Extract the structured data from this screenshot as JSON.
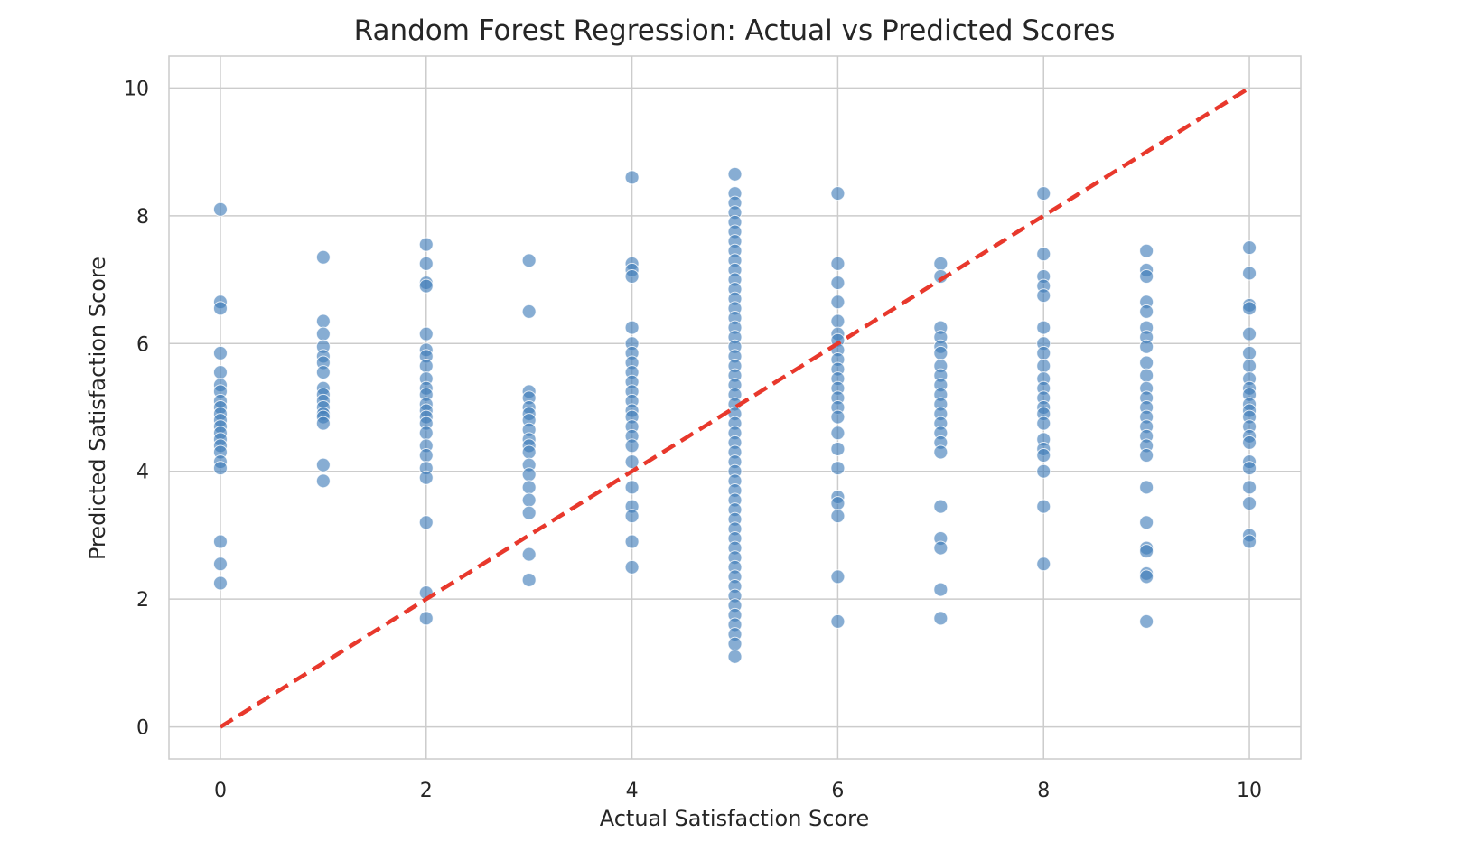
{
  "chart_data": {
    "type": "scatter",
    "title": "Random Forest Regression: Actual vs Predicted Scores",
    "xlabel": "Actual Satisfaction Score",
    "ylabel": "Predicted Satisfaction Score",
    "xlim": [
      -0.5,
      10.5
    ],
    "ylim": [
      -0.5,
      10.5
    ],
    "xticks": [
      0,
      2,
      4,
      6,
      8,
      10
    ],
    "yticks": [
      0,
      2,
      4,
      6,
      8,
      10
    ],
    "grid": true,
    "colors": {
      "points": "#3d7ab8",
      "reference_line": "#e8382c",
      "grid": "#cccccc",
      "frame": "#cccccc",
      "text": "#262626"
    },
    "reference_line": {
      "style": "dashed",
      "x": [
        0,
        10
      ],
      "y": [
        0,
        10
      ]
    },
    "series": [
      {
        "points": [
          [
            0,
            8.1
          ],
          [
            0,
            6.65
          ],
          [
            0,
            6.55
          ],
          [
            0,
            5.85
          ],
          [
            0,
            5.55
          ],
          [
            0,
            5.35
          ],
          [
            0,
            5.25
          ],
          [
            0,
            5.1
          ],
          [
            0,
            5.0
          ],
          [
            0,
            4.9
          ],
          [
            0,
            4.8
          ],
          [
            0,
            4.7
          ],
          [
            0,
            4.6
          ],
          [
            0,
            4.5
          ],
          [
            0,
            4.4
          ],
          [
            0,
            4.3
          ],
          [
            0,
            4.15
          ],
          [
            0,
            4.05
          ],
          [
            0,
            2.9
          ],
          [
            0,
            2.55
          ],
          [
            0,
            2.25
          ],
          [
            1,
            7.35
          ],
          [
            1,
            6.35
          ],
          [
            1,
            6.15
          ],
          [
            1,
            5.95
          ],
          [
            1,
            5.8
          ],
          [
            1,
            5.7
          ],
          [
            1,
            5.55
          ],
          [
            1,
            5.3
          ],
          [
            1,
            5.2
          ],
          [
            1,
            5.1
          ],
          [
            1,
            5.0
          ],
          [
            1,
            4.9
          ],
          [
            1,
            4.85
          ],
          [
            1,
            4.75
          ],
          [
            1,
            4.1
          ],
          [
            1,
            3.85
          ],
          [
            2,
            7.55
          ],
          [
            2,
            7.25
          ],
          [
            2,
            6.95
          ],
          [
            2,
            6.9
          ],
          [
            2,
            6.15
          ],
          [
            2,
            5.9
          ],
          [
            2,
            5.8
          ],
          [
            2,
            5.65
          ],
          [
            2,
            5.45
          ],
          [
            2,
            5.3
          ],
          [
            2,
            5.2
          ],
          [
            2,
            5.05
          ],
          [
            2,
            4.95
          ],
          [
            2,
            4.85
          ],
          [
            2,
            4.75
          ],
          [
            2,
            4.6
          ],
          [
            2,
            4.4
          ],
          [
            2,
            4.25
          ],
          [
            2,
            4.05
          ],
          [
            2,
            3.9
          ],
          [
            2,
            3.2
          ],
          [
            2,
            2.1
          ],
          [
            2,
            1.7
          ],
          [
            3,
            7.3
          ],
          [
            3,
            6.5
          ],
          [
            3,
            5.25
          ],
          [
            3,
            5.15
          ],
          [
            3,
            5.0
          ],
          [
            3,
            4.9
          ],
          [
            3,
            4.8
          ],
          [
            3,
            4.65
          ],
          [
            3,
            4.5
          ],
          [
            3,
            4.4
          ],
          [
            3,
            4.3
          ],
          [
            3,
            4.1
          ],
          [
            3,
            3.95
          ],
          [
            3,
            3.75
          ],
          [
            3,
            3.55
          ],
          [
            3,
            3.35
          ],
          [
            3,
            2.7
          ],
          [
            3,
            2.3
          ],
          [
            4,
            8.6
          ],
          [
            4,
            7.25
          ],
          [
            4,
            7.15
          ],
          [
            4,
            7.05
          ],
          [
            4,
            6.25
          ],
          [
            4,
            6.0
          ],
          [
            4,
            5.85
          ],
          [
            4,
            5.7
          ],
          [
            4,
            5.55
          ],
          [
            4,
            5.4
          ],
          [
            4,
            5.25
          ],
          [
            4,
            5.1
          ],
          [
            4,
            4.95
          ],
          [
            4,
            4.85
          ],
          [
            4,
            4.7
          ],
          [
            4,
            4.55
          ],
          [
            4,
            4.4
          ],
          [
            4,
            4.15
          ],
          [
            4,
            3.75
          ],
          [
            4,
            3.45
          ],
          [
            4,
            3.3
          ],
          [
            4,
            2.9
          ],
          [
            4,
            2.5
          ],
          [
            5,
            8.65
          ],
          [
            5,
            8.35
          ],
          [
            5,
            8.2
          ],
          [
            5,
            8.05
          ],
          [
            5,
            7.9
          ],
          [
            5,
            7.75
          ],
          [
            5,
            7.6
          ],
          [
            5,
            7.45
          ],
          [
            5,
            7.3
          ],
          [
            5,
            7.15
          ],
          [
            5,
            7.0
          ],
          [
            5,
            6.85
          ],
          [
            5,
            6.7
          ],
          [
            5,
            6.55
          ],
          [
            5,
            6.4
          ],
          [
            5,
            6.25
          ],
          [
            5,
            6.1
          ],
          [
            5,
            5.95
          ],
          [
            5,
            5.8
          ],
          [
            5,
            5.65
          ],
          [
            5,
            5.5
          ],
          [
            5,
            5.35
          ],
          [
            5,
            5.2
          ],
          [
            5,
            5.05
          ],
          [
            5,
            4.9
          ],
          [
            5,
            4.75
          ],
          [
            5,
            4.6
          ],
          [
            5,
            4.45
          ],
          [
            5,
            4.3
          ],
          [
            5,
            4.15
          ],
          [
            5,
            4.0
          ],
          [
            5,
            3.85
          ],
          [
            5,
            3.7
          ],
          [
            5,
            3.55
          ],
          [
            5,
            3.4
          ],
          [
            5,
            3.25
          ],
          [
            5,
            3.1
          ],
          [
            5,
            2.95
          ],
          [
            5,
            2.8
          ],
          [
            5,
            2.65
          ],
          [
            5,
            2.5
          ],
          [
            5,
            2.35
          ],
          [
            5,
            2.2
          ],
          [
            5,
            2.05
          ],
          [
            5,
            1.9
          ],
          [
            5,
            1.75
          ],
          [
            5,
            1.6
          ],
          [
            5,
            1.45
          ],
          [
            5,
            1.3
          ],
          [
            5,
            1.1
          ],
          [
            6,
            8.35
          ],
          [
            6,
            7.25
          ],
          [
            6,
            6.95
          ],
          [
            6,
            6.65
          ],
          [
            6,
            6.35
          ],
          [
            6,
            6.15
          ],
          [
            6,
            6.05
          ],
          [
            6,
            5.9
          ],
          [
            6,
            5.75
          ],
          [
            6,
            5.6
          ],
          [
            6,
            5.45
          ],
          [
            6,
            5.3
          ],
          [
            6,
            5.15
          ],
          [
            6,
            5.0
          ],
          [
            6,
            4.85
          ],
          [
            6,
            4.6
          ],
          [
            6,
            4.35
          ],
          [
            6,
            4.05
          ],
          [
            6,
            3.6
          ],
          [
            6,
            3.5
          ],
          [
            6,
            3.3
          ],
          [
            6,
            2.35
          ],
          [
            6,
            1.65
          ],
          [
            7,
            7.25
          ],
          [
            7,
            7.05
          ],
          [
            7,
            6.25
          ],
          [
            7,
            6.1
          ],
          [
            7,
            5.95
          ],
          [
            7,
            5.85
          ],
          [
            7,
            5.65
          ],
          [
            7,
            5.5
          ],
          [
            7,
            5.35
          ],
          [
            7,
            5.2
          ],
          [
            7,
            5.05
          ],
          [
            7,
            4.9
          ],
          [
            7,
            4.75
          ],
          [
            7,
            4.6
          ],
          [
            7,
            4.45
          ],
          [
            7,
            4.3
          ],
          [
            7,
            3.45
          ],
          [
            7,
            2.95
          ],
          [
            7,
            2.8
          ],
          [
            7,
            2.15
          ],
          [
            7,
            1.7
          ],
          [
            8,
            8.35
          ],
          [
            8,
            7.4
          ],
          [
            8,
            7.05
          ],
          [
            8,
            6.9
          ],
          [
            8,
            6.75
          ],
          [
            8,
            6.25
          ],
          [
            8,
            6.0
          ],
          [
            8,
            5.85
          ],
          [
            8,
            5.65
          ],
          [
            8,
            5.45
          ],
          [
            8,
            5.3
          ],
          [
            8,
            5.15
          ],
          [
            8,
            5.0
          ],
          [
            8,
            4.9
          ],
          [
            8,
            4.75
          ],
          [
            8,
            4.5
          ],
          [
            8,
            4.35
          ],
          [
            8,
            4.25
          ],
          [
            8,
            4.0
          ],
          [
            8,
            3.45
          ],
          [
            8,
            2.55
          ],
          [
            9,
            7.45
          ],
          [
            9,
            7.15
          ],
          [
            9,
            7.05
          ],
          [
            9,
            6.65
          ],
          [
            9,
            6.5
          ],
          [
            9,
            6.25
          ],
          [
            9,
            6.1
          ],
          [
            9,
            5.95
          ],
          [
            9,
            5.7
          ],
          [
            9,
            5.5
          ],
          [
            9,
            5.3
          ],
          [
            9,
            5.15
          ],
          [
            9,
            5.0
          ],
          [
            9,
            4.85
          ],
          [
            9,
            4.7
          ],
          [
            9,
            4.55
          ],
          [
            9,
            4.4
          ],
          [
            9,
            4.25
          ],
          [
            9,
            3.75
          ],
          [
            9,
            3.2
          ],
          [
            9,
            2.8
          ],
          [
            9,
            2.75
          ],
          [
            9,
            2.4
          ],
          [
            9,
            2.35
          ],
          [
            9,
            1.65
          ],
          [
            10,
            7.5
          ],
          [
            10,
            7.1
          ],
          [
            10,
            6.6
          ],
          [
            10,
            6.55
          ],
          [
            10,
            6.15
          ],
          [
            10,
            5.85
          ],
          [
            10,
            5.65
          ],
          [
            10,
            5.45
          ],
          [
            10,
            5.3
          ],
          [
            10,
            5.2
          ],
          [
            10,
            5.05
          ],
          [
            10,
            4.95
          ],
          [
            10,
            4.85
          ],
          [
            10,
            4.7
          ],
          [
            10,
            4.55
          ],
          [
            10,
            4.45
          ],
          [
            10,
            4.15
          ],
          [
            10,
            4.05
          ],
          [
            10,
            3.75
          ],
          [
            10,
            3.5
          ],
          [
            10,
            3.0
          ],
          [
            10,
            2.9
          ]
        ]
      }
    ]
  }
}
